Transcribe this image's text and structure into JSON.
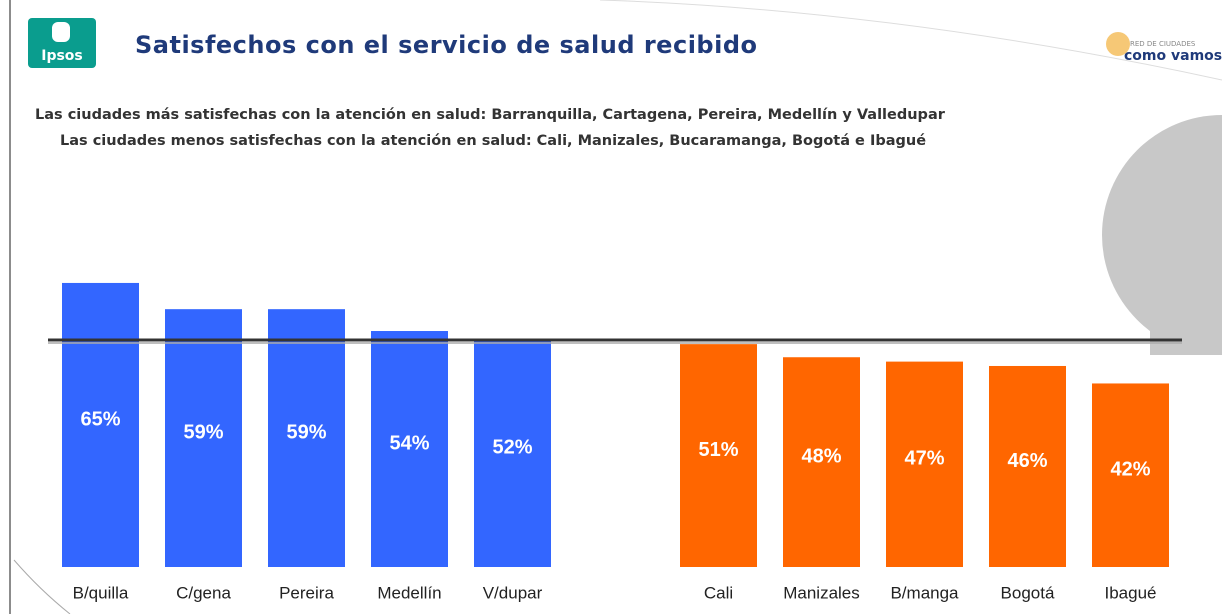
{
  "header": {
    "logo": "Ipsos",
    "partner_logo_small": "RED DE CIUDADES",
    "partner_logo": "como vamos"
  },
  "chart_data": {
    "type": "bar",
    "title": "Satisfechos con el servicio de salud recibido",
    "subtitle": [
      "Las ciudades más satisfechas con la atención en salud: Barranquilla, Cartagena, Pereira, Medellín y Valledupar",
      "Las ciudades menos satisfechas con la atención en salud:  Cali, Manizales, Bucaramanga, Bogotá e Ibagué"
    ],
    "categories": [
      "B/quilla",
      "C/gena",
      "Pereira",
      "Medellín",
      "V/dupar",
      "Cali",
      "Manizales",
      "B/manga",
      "Bogotá",
      "Ibagué"
    ],
    "values": [
      65,
      59,
      59,
      54,
      52,
      51,
      48,
      47,
      46,
      42
    ],
    "value_labels": [
      "65%",
      "59%",
      "59%",
      "54%",
      "52%",
      "51%",
      "48%",
      "47%",
      "46%",
      "42%"
    ],
    "colors": [
      "#3366ff",
      "#3366ff",
      "#3366ff",
      "#3366ff",
      "#3366ff",
      "#ff6600",
      "#ff6600",
      "#ff6600",
      "#ff6600",
      "#ff6600"
    ]
  }
}
